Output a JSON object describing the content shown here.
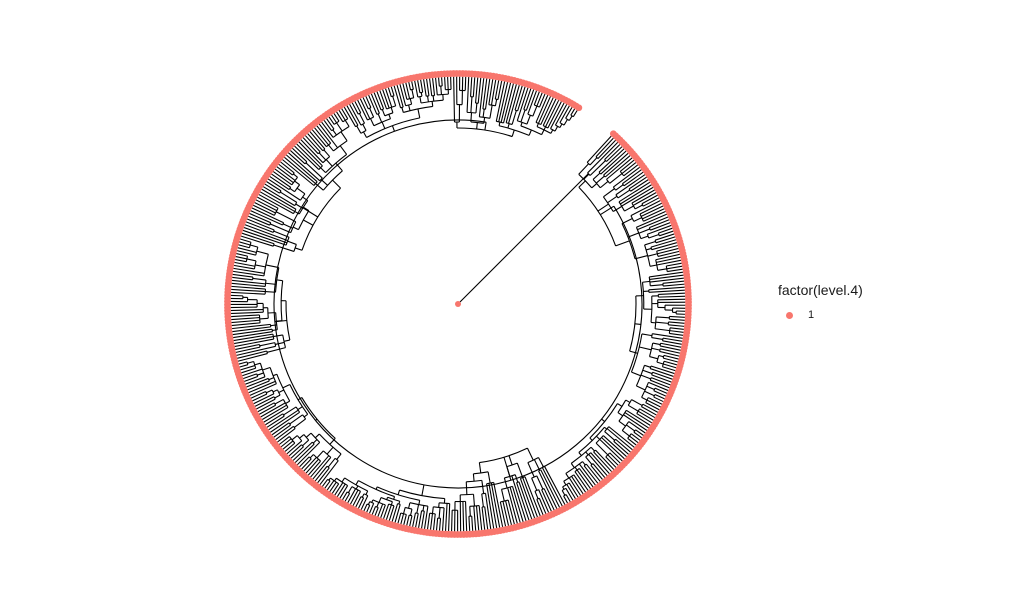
{
  "figure": {
    "type": "circular-phylogenetic-tree",
    "layout": "circular",
    "tip_count": "many",
    "tip_point_color": "#F8766D",
    "branch_color": "#000000",
    "background": "#FFFFFF",
    "tip_color_factor": "factor(level.4)"
  },
  "legend": {
    "title": "factor(level.4)",
    "items": [
      {
        "label": "1",
        "color": "#F8766D"
      }
    ]
  }
}
